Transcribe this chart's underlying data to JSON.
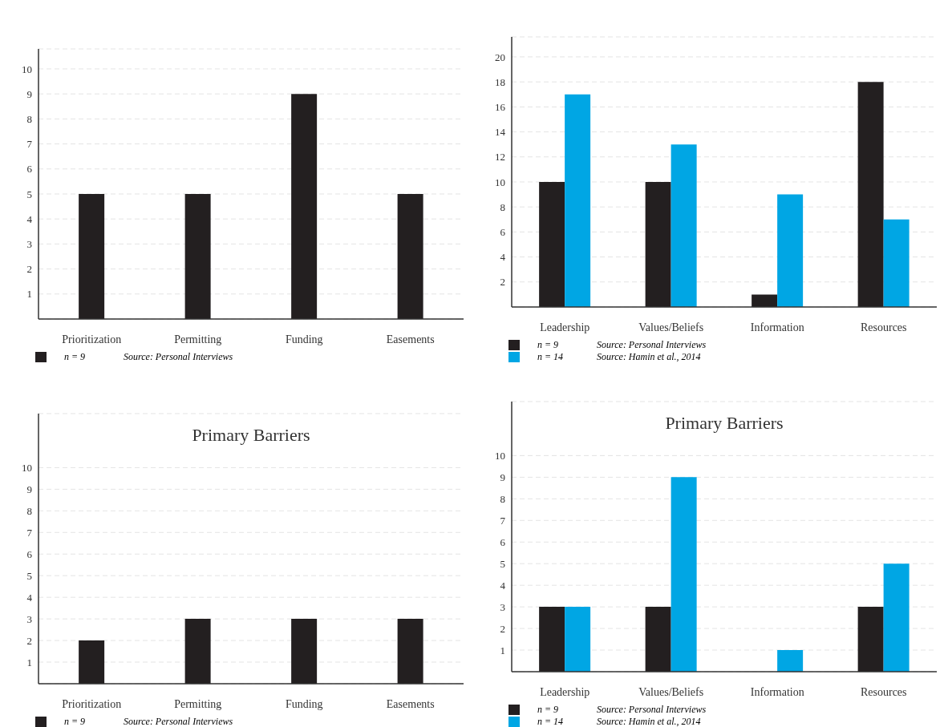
{
  "chart_data": [
    {
      "type": "bar",
      "categories": [
        "Prioritization",
        "Permitting",
        "Funding",
        "Easements"
      ],
      "series": [
        {
          "name": "n = 9",
          "color": "#231f20",
          "values": [
            5,
            5,
            9,
            5
          ]
        }
      ],
      "ylim": [
        0,
        10.8
      ],
      "yticks": [
        1,
        2,
        3,
        4,
        5,
        6,
        7,
        8,
        9,
        10
      ],
      "grid": "y",
      "legend": "bottom left",
      "annotations": [
        "Source: Personal Interviews"
      ]
    },
    {
      "type": "bar",
      "categories": [
        "Leadership",
        "Values/Beliefs",
        "Information",
        "Resources"
      ],
      "series": [
        {
          "name": "n = 9",
          "color": "#231f20",
          "values": [
            10,
            10,
            1,
            18
          ]
        },
        {
          "name": "n = 14",
          "color": "#00a6e4",
          "values": [
            17,
            13,
            9,
            7
          ]
        }
      ],
      "ylim": [
        0,
        21.6
      ],
      "yticks": [
        2,
        4,
        6,
        8,
        10,
        12,
        14,
        16,
        18,
        20
      ],
      "grid": "y",
      "legend": "bottom left",
      "annotations": [
        "Source: Personal Interviews",
        "Source: Hamin et al., 2014"
      ]
    },
    {
      "type": "bar",
      "title": "Primary Barriers",
      "categories": [
        "Prioritization",
        "Permitting",
        "Funding",
        "Easements"
      ],
      "series": [
        {
          "name": "n = 9",
          "color": "#231f20",
          "values": [
            2,
            3,
            3,
            3
          ]
        }
      ],
      "ylim": [
        0,
        12.5
      ],
      "yticks": [
        1,
        2,
        3,
        4,
        5,
        6,
        7,
        8,
        9,
        10
      ],
      "grid": "y",
      "legend": "bottom left",
      "annotations": [
        "Source: Personal Interviews"
      ]
    },
    {
      "type": "bar",
      "title": "Primary Barriers",
      "categories": [
        "Leadership",
        "Values/Beliefs",
        "Information",
        "Resources"
      ],
      "series": [
        {
          "name": "n = 9",
          "color": "#231f20",
          "values": [
            3,
            3,
            0,
            3
          ]
        },
        {
          "name": "n = 14",
          "color": "#00a6e4",
          "values": [
            3,
            9,
            1,
            5
          ]
        }
      ],
      "ylim": [
        0,
        12.5
      ],
      "yticks": [
        1,
        2,
        3,
        4,
        5,
        6,
        7,
        8,
        9,
        10
      ],
      "grid": "y",
      "legend": "bottom left",
      "annotations": [
        "Source: Personal Interviews",
        "Source: Hamin et al., 2014"
      ]
    }
  ]
}
